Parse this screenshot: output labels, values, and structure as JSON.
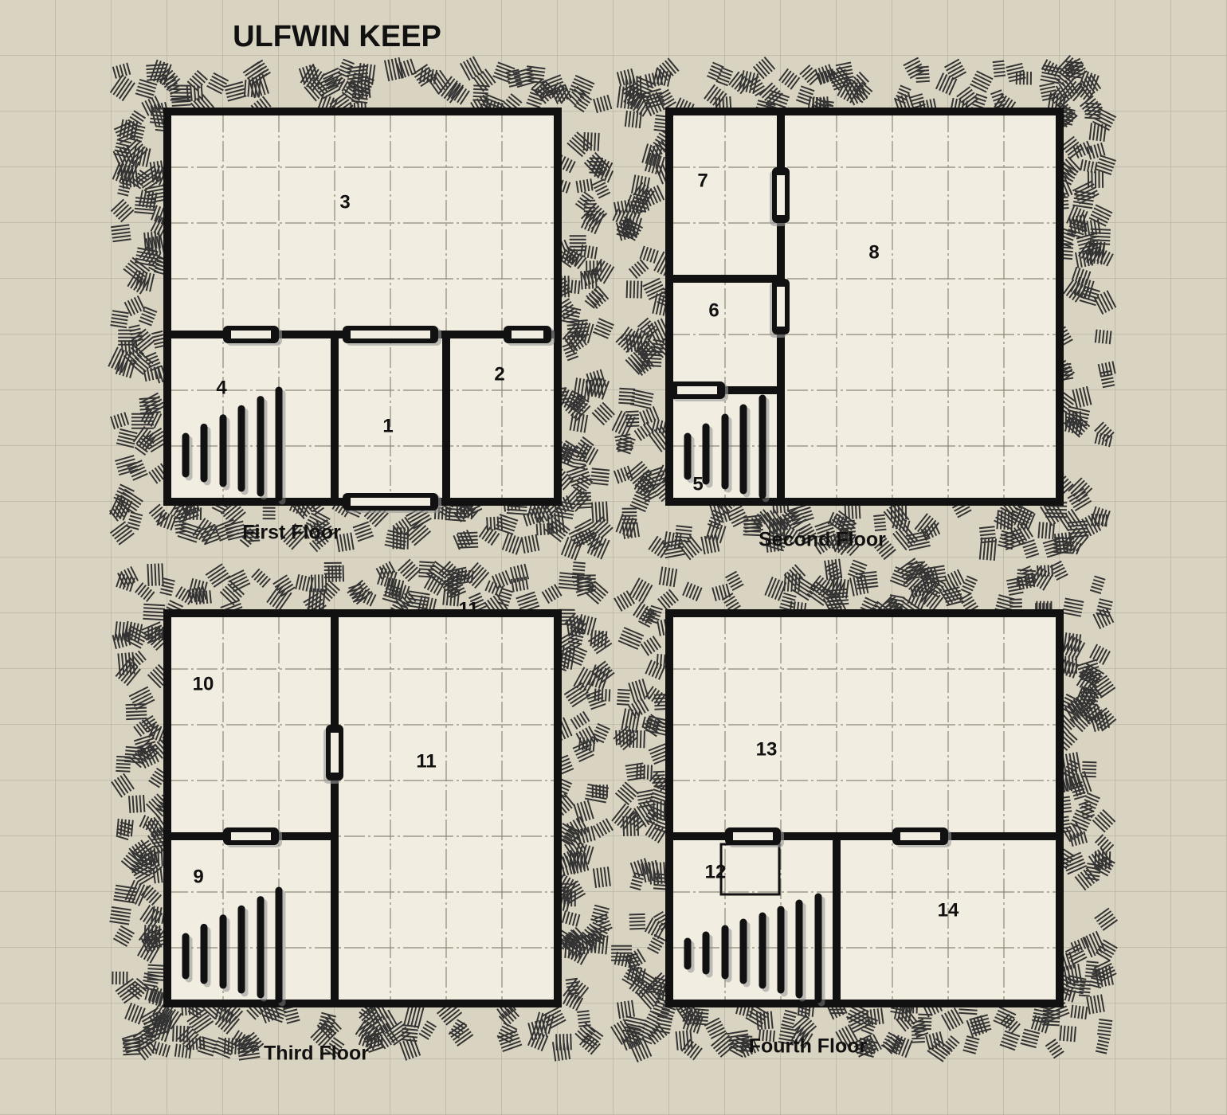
{
  "title": "ULFWIN KEEP",
  "floors": [
    {
      "label": "First Floor",
      "rooms": [
        "1",
        "2",
        "3",
        "4"
      ]
    },
    {
      "label": "Second Floor",
      "rooms": [
        "5",
        "6",
        "7",
        "8"
      ]
    },
    {
      "label": "Third Floor",
      "rooms": [
        "9",
        "10",
        "11",
        "11"
      ]
    },
    {
      "label": "Fourth Floor",
      "rooms": [
        "12",
        "13",
        "14"
      ]
    }
  ]
}
